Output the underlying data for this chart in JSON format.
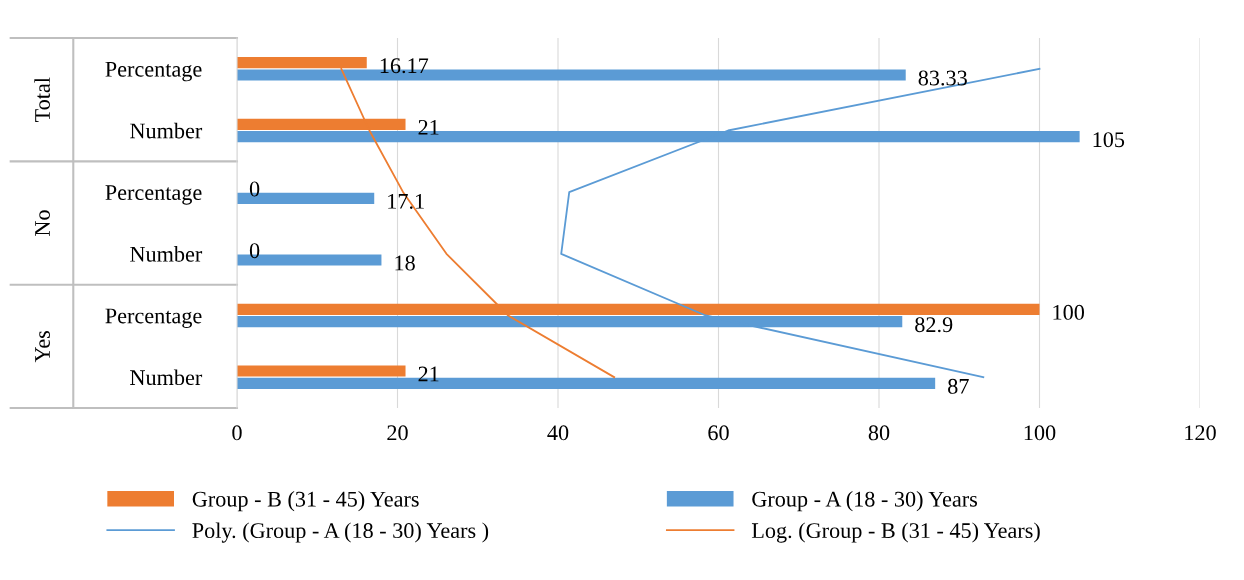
{
  "chart_data": {
    "type": "bar",
    "orientation": "horizontal",
    "categories": [
      "Percentage",
      "Number",
      "Percentage",
      "Number",
      "Percentage",
      "Number"
    ],
    "annotations": [
      "Total",
      "No",
      "Yes"
    ],
    "series": [
      {
        "name": "Group - B (31 - 45) Years",
        "color": "#ed7d31",
        "values": [
          16.17,
          21,
          0,
          0,
          100,
          21
        ],
        "value_labels": [
          "16.17",
          "21",
          "0",
          "0",
          "100",
          "21"
        ]
      },
      {
        "name": "Group - A (18 - 30) Years",
        "color": "#5b9bd5",
        "values": [
          83.33,
          105,
          17.1,
          18,
          82.9,
          87
        ],
        "value_labels": [
          "83.33",
          "105",
          "17.1",
          "18",
          "82.9",
          "87"
        ]
      },
      {
        "name": "Poly. (Group - A (18 - 30) Years )",
        "type": "line",
        "color": "#5b9bd5",
        "values": [
          100,
          61.2,
          41.4,
          40.4,
          58.4,
          93
        ]
      },
      {
        "name": "Log. (Group - B (31 - 45) Years)",
        "type": "line",
        "color": "#ed7d31",
        "values": [
          13,
          16.5,
          20.7,
          26.1,
          33.8,
          47
        ]
      }
    ],
    "xlim": [
      0,
      120
    ],
    "xticks": [
      0,
      20,
      40,
      60,
      80,
      100,
      120
    ],
    "grid": "x",
    "legend": "bottom",
    "marker": "none",
    "line_style": "solid"
  }
}
